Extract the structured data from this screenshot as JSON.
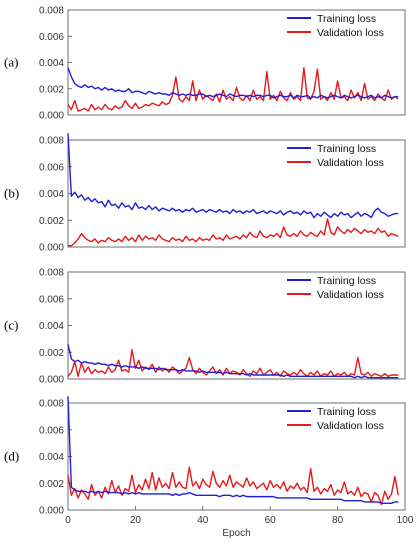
{
  "chart_data": [
    {
      "type": "line",
      "panel_label": "(a)",
      "xlabel": "",
      "ylabel": "",
      "xlim": [
        0,
        100
      ],
      "ylim": [
        0,
        0.008
      ],
      "y_ticks": [
        "0.000",
        "0.002",
        "0.004",
        "0.006",
        "0.008"
      ],
      "x_ticks": [],
      "legend_position": "top-right",
      "series": [
        {
          "name": "Training loss",
          "color": "#1f1fd6",
          "values": [
            0.0036,
            0.0029,
            0.0024,
            0.0022,
            0.0021,
            0.0023,
            0.0021,
            0.0022,
            0.002,
            0.0021,
            0.0019,
            0.0021,
            0.0019,
            0.002,
            0.0018,
            0.0019,
            0.0018,
            0.0018,
            0.002,
            0.0017,
            0.0018,
            0.0018,
            0.0017,
            0.0016,
            0.0018,
            0.0017,
            0.0016,
            0.0017,
            0.0016,
            0.0016,
            0.0015,
            0.0017,
            0.0016,
            0.0015,
            0.0016,
            0.0015,
            0.0016,
            0.0015,
            0.0015,
            0.0016,
            0.0016,
            0.0014,
            0.0015,
            0.0014,
            0.0015,
            0.0016,
            0.0015,
            0.0014,
            0.0016,
            0.0015,
            0.0014,
            0.0015,
            0.0015,
            0.0014,
            0.0015,
            0.0014,
            0.0015,
            0.0015,
            0.0014,
            0.0015,
            0.0015,
            0.0013,
            0.0014,
            0.0015,
            0.0014,
            0.0014,
            0.0015,
            0.0013,
            0.0015,
            0.0014,
            0.0014,
            0.0015,
            0.0013,
            0.0014,
            0.0013,
            0.0015,
            0.0014,
            0.0013,
            0.0014,
            0.0015,
            0.0014,
            0.0013,
            0.0015,
            0.0014,
            0.0013,
            0.0014,
            0.0015,
            0.0014,
            0.0013,
            0.0014,
            0.0015,
            0.0013,
            0.0014,
            0.0013,
            0.0015,
            0.0014,
            0.0013,
            0.0014,
            0.0014
          ]
        },
        {
          "name": "Validation loss",
          "color": "#e31a1c",
          "values": [
            0.0008,
            0.0004,
            0.0011,
            0.0003,
            0.0004,
            0.0005,
            0.0003,
            0.0008,
            0.0004,
            0.0006,
            0.0004,
            0.0008,
            0.0005,
            0.0004,
            0.0007,
            0.0005,
            0.0006,
            0.0011,
            0.0007,
            0.0005,
            0.0009,
            0.0005,
            0.0006,
            0.0008,
            0.0007,
            0.0009,
            0.0008,
            0.0007,
            0.001,
            0.0008,
            0.0009,
            0.0015,
            0.0029,
            0.0012,
            0.001,
            0.0014,
            0.0011,
            0.0026,
            0.0011,
            0.0019,
            0.0012,
            0.0015,
            0.0013,
            0.0011,
            0.0016,
            0.001,
            0.0019,
            0.0012,
            0.0014,
            0.0011,
            0.0021,
            0.0013,
            0.0011,
            0.0015,
            0.0011,
            0.0019,
            0.0012,
            0.0014,
            0.0011,
            0.0033,
            0.0012,
            0.0015,
            0.0011,
            0.0018,
            0.0013,
            0.0011,
            0.0017,
            0.0012,
            0.0014,
            0.0011,
            0.0036,
            0.0013,
            0.0012,
            0.0018,
            0.0035,
            0.0012,
            0.0014,
            0.0011,
            0.0017,
            0.0012,
            0.0026,
            0.0013,
            0.0014,
            0.0011,
            0.0019,
            0.0013,
            0.0017,
            0.0011,
            0.0024,
            0.0012,
            0.0014,
            0.0011,
            0.0016,
            0.0013,
            0.0011,
            0.0019,
            0.0012,
            0.0014,
            0.0012
          ]
        }
      ]
    },
    {
      "type": "line",
      "panel_label": "(b)",
      "xlabel": "",
      "ylabel": "",
      "xlim": [
        0,
        100
      ],
      "ylim": [
        0,
        0.008
      ],
      "y_ticks": [
        "0.000",
        "0.002",
        "0.004",
        "0.006",
        "0.008"
      ],
      "x_ticks": [],
      "legend_position": "top-right",
      "series": [
        {
          "name": "Training loss",
          "color": "#1f1fd6",
          "values": [
            0.0085,
            0.0038,
            0.0041,
            0.0037,
            0.0039,
            0.0035,
            0.0037,
            0.0034,
            0.0036,
            0.0033,
            0.0034,
            0.003,
            0.0035,
            0.0031,
            0.0032,
            0.0029,
            0.0033,
            0.003,
            0.0031,
            0.0028,
            0.0033,
            0.0029,
            0.003,
            0.0028,
            0.0031,
            0.0028,
            0.003,
            0.0027,
            0.0029,
            0.0028,
            0.0027,
            0.0029,
            0.0027,
            0.0028,
            0.0026,
            0.0028,
            0.0027,
            0.0029,
            0.0026,
            0.0027,
            0.0028,
            0.0026,
            0.0028,
            0.0027,
            0.0026,
            0.0028,
            0.0026,
            0.0027,
            0.0025,
            0.0028,
            0.0026,
            0.0027,
            0.0025,
            0.0027,
            0.0026,
            0.0028,
            0.0025,
            0.0026,
            0.0027,
            0.0025,
            0.0027,
            0.0026,
            0.0025,
            0.0027,
            0.0024,
            0.0026,
            0.0027,
            0.0025,
            0.0026,
            0.0024,
            0.0027,
            0.0025,
            0.0026,
            0.0022,
            0.0025,
            0.0023,
            0.0026,
            0.0024,
            0.0022,
            0.0025,
            0.0023,
            0.0026,
            0.0024,
            0.0025,
            0.0022,
            0.0024,
            0.0026,
            0.0023,
            0.0025,
            0.0024,
            0.0022,
            0.0027,
            0.0029,
            0.0026,
            0.0025,
            0.0023,
            0.0024,
            0.0025,
            0.0025
          ]
        },
        {
          "name": "Validation loss",
          "color": "#e31a1c",
          "values": [
            0.0001,
            0.0001,
            0.0003,
            0.0006,
            0.001,
            0.0007,
            0.0005,
            0.0004,
            0.0006,
            0.0003,
            0.0005,
            0.0004,
            0.0007,
            0.0005,
            0.0004,
            0.0006,
            0.0004,
            0.0008,
            0.0005,
            0.0007,
            0.0004,
            0.0009,
            0.0005,
            0.0008,
            0.0006,
            0.0007,
            0.0005,
            0.0009,
            0.0006,
            0.0005,
            0.0004,
            0.0007,
            0.0005,
            0.0006,
            0.0004,
            0.0008,
            0.0005,
            0.0006,
            0.0004,
            0.0007,
            0.0005,
            0.0006,
            0.0005,
            0.0009,
            0.0006,
            0.0007,
            0.0005,
            0.0009,
            0.0006,
            0.0007,
            0.0008,
            0.0006,
            0.0009,
            0.0007,
            0.0011,
            0.0008,
            0.0007,
            0.0012,
            0.0008,
            0.0007,
            0.0009,
            0.0008,
            0.001,
            0.0007,
            0.0015,
            0.0009,
            0.0008,
            0.001,
            0.0008,
            0.0012,
            0.0009,
            0.0008,
            0.0011,
            0.0009,
            0.0008,
            0.0012,
            0.0009,
            0.0021,
            0.0011,
            0.0009,
            0.0015,
            0.0012,
            0.001,
            0.0013,
            0.0011,
            0.0014,
            0.0012,
            0.001,
            0.0013,
            0.0011,
            0.0012,
            0.001,
            0.0014,
            0.0011,
            0.0012,
            0.0008,
            0.001,
            0.0009,
            0.0008
          ]
        }
      ]
    },
    {
      "type": "line",
      "panel_label": "(c)",
      "xlabel": "",
      "ylabel": "",
      "xlim": [
        0,
        100
      ],
      "ylim": [
        0,
        0.008
      ],
      "y_ticks": [
        "0.000",
        "0.002",
        "0.004",
        "0.006",
        "0.008"
      ],
      "x_ticks": [],
      "legend_position": "top-right",
      "series": [
        {
          "name": "Training loss",
          "color": "#1f1fd6",
          "values": [
            0.0026,
            0.0015,
            0.0013,
            0.0014,
            0.0012,
            0.0013,
            0.0012,
            0.0012,
            0.0011,
            0.0012,
            0.0011,
            0.0011,
            0.001,
            0.0011,
            0.001,
            0.001,
            0.0009,
            0.001,
            0.0009,
            0.0009,
            0.0009,
            0.0008,
            0.0009,
            0.0008,
            0.0008,
            0.0008,
            0.0008,
            0.0007,
            0.0008,
            0.0007,
            0.0007,
            0.0007,
            0.0007,
            0.0006,
            0.0007,
            0.0006,
            0.0006,
            0.0006,
            0.0006,
            0.0005,
            0.0006,
            0.0005,
            0.0005,
            0.0005,
            0.0005,
            0.0005,
            0.0004,
            0.0005,
            0.0004,
            0.0004,
            0.0004,
            0.0004,
            0.0004,
            0.0003,
            0.0004,
            0.0003,
            0.0003,
            0.0003,
            0.0003,
            0.0003,
            0.0003,
            0.0003,
            0.0003,
            0.0003,
            0.0002,
            0.0003,
            0.0002,
            0.0002,
            0.0002,
            0.0002,
            0.0002,
            0.0002,
            0.0002,
            0.0002,
            0.0002,
            0.0002,
            0.0002,
            0.0002,
            0.0002,
            0.0002,
            0.0002,
            0.0002,
            0.0002,
            0.0002,
            0.0002,
            0.0001,
            0.0002,
            0.0001,
            0.0002,
            0.0001,
            0.0001,
            0.0001,
            0.0001,
            0.0001,
            0.0001,
            0.0001,
            0.0001,
            0.0001,
            0.0001
          ]
        },
        {
          "name": "Validation loss",
          "color": "#e31a1c",
          "values": [
            0.0002,
            0.0005,
            0.0013,
            0.0002,
            0.0012,
            0.0005,
            0.0009,
            0.0004,
            0.0007,
            0.0005,
            0.0006,
            0.0004,
            0.0009,
            0.0005,
            0.0007,
            0.0014,
            0.0006,
            0.0007,
            0.0005,
            0.0022,
            0.0008,
            0.0014,
            0.0006,
            0.0009,
            0.0007,
            0.0011,
            0.0005,
            0.0009,
            0.0006,
            0.0008,
            0.0005,
            0.0009,
            0.0007,
            0.0004,
            0.0006,
            0.0008,
            0.0016,
            0.0007,
            0.0004,
            0.0008,
            0.0005,
            0.0003,
            0.0006,
            0.0009,
            0.0004,
            0.0007,
            0.0003,
            0.0008,
            0.0004,
            0.0006,
            0.0005,
            0.0003,
            0.0007,
            0.0004,
            0.0002,
            0.0006,
            0.0004,
            0.0008,
            0.0003,
            0.0005,
            0.0007,
            0.0003,
            0.0005,
            0.0002,
            0.0006,
            0.0004,
            0.0003,
            0.0005,
            0.0003,
            0.0007,
            0.0004,
            0.0002,
            0.0005,
            0.0003,
            0.0006,
            0.0002,
            0.0004,
            0.0003,
            0.0006,
            0.0002,
            0.0004,
            0.0003,
            0.0005,
            0.0002,
            0.0004,
            0.0003,
            0.0016,
            0.0004,
            0.0003,
            0.0005,
            0.0002,
            0.0004,
            0.0003,
            0.0002,
            0.0004,
            0.0002,
            0.0003,
            0.0003,
            0.0003
          ]
        }
      ]
    },
    {
      "type": "line",
      "panel_label": "(d)",
      "xlabel": "Epoch",
      "ylabel": "",
      "xlim": [
        0,
        100
      ],
      "ylim": [
        0,
        0.008
      ],
      "y_ticks": [
        "0.000",
        "0.002",
        "0.004",
        "0.006",
        "0.008"
      ],
      "x_ticks": [
        "0",
        "20",
        "40",
        "60",
        "80",
        "100"
      ],
      "legend_position": "top-right",
      "series": [
        {
          "name": "Training loss",
          "color": "#1f1fd6",
          "values": [
            0.0085,
            0.0017,
            0.0015,
            0.0014,
            0.0014,
            0.0014,
            0.0013,
            0.0014,
            0.0013,
            0.0014,
            0.0013,
            0.0014,
            0.0013,
            0.0013,
            0.0013,
            0.0013,
            0.0012,
            0.0013,
            0.0012,
            0.0013,
            0.0012,
            0.0013,
            0.0012,
            0.0012,
            0.0012,
            0.0012,
            0.0012,
            0.0012,
            0.0012,
            0.0012,
            0.0012,
            0.0011,
            0.0012,
            0.0011,
            0.0012,
            0.0012,
            0.0013,
            0.0012,
            0.0011,
            0.0011,
            0.0011,
            0.0011,
            0.0011,
            0.0011,
            0.0011,
            0.001,
            0.0011,
            0.0011,
            0.0011,
            0.001,
            0.0011,
            0.001,
            0.0011,
            0.001,
            0.001,
            0.001,
            0.001,
            0.001,
            0.001,
            0.001,
            0.001,
            0.001,
            0.0009,
            0.0009,
            0.0009,
            0.0009,
            0.0009,
            0.0009,
            0.0009,
            0.0009,
            0.0009,
            0.0009,
            0.0008,
            0.0008,
            0.0008,
            0.0008,
            0.0008,
            0.0008,
            0.0008,
            0.0008,
            0.0008,
            0.0008,
            0.0007,
            0.0007,
            0.0007,
            0.0007,
            0.0007,
            0.0007,
            0.0006,
            0.0006,
            0.0006,
            0.0006,
            0.0006,
            0.0005,
            0.0005,
            0.0005,
            0.0005,
            0.0006,
            0.0006
          ]
        },
        {
          "name": "Validation loss",
          "color": "#e31a1c",
          "values": [
            0.0026,
            0.0011,
            0.0016,
            0.0009,
            0.0015,
            0.0012,
            0.0008,
            0.0019,
            0.0011,
            0.0014,
            0.0009,
            0.0017,
            0.0012,
            0.0022,
            0.0013,
            0.0018,
            0.0011,
            0.0016,
            0.0014,
            0.0026,
            0.0013,
            0.0019,
            0.0015,
            0.0023,
            0.0016,
            0.0028,
            0.0015,
            0.0024,
            0.0017,
            0.002,
            0.0016,
            0.0028,
            0.0017,
            0.0021,
            0.0017,
            0.0016,
            0.0032,
            0.0018,
            0.0021,
            0.0016,
            0.0023,
            0.0019,
            0.0017,
            0.0029,
            0.002,
            0.0017,
            0.0022,
            0.0018,
            0.0026,
            0.0017,
            0.0021,
            0.0019,
            0.0017,
            0.0024,
            0.0018,
            0.0021,
            0.0016,
            0.0018,
            0.002,
            0.0015,
            0.0022,
            0.0017,
            0.0019,
            0.0016,
            0.0021,
            0.0014,
            0.0018,
            0.0016,
            0.002,
            0.0015,
            0.0017,
            0.0013,
            0.0031,
            0.0014,
            0.0017,
            0.0012,
            0.0016,
            0.0014,
            0.0019,
            0.0011,
            0.0015,
            0.0013,
            0.0021,
            0.0012,
            0.0014,
            0.0011,
            0.0017,
            0.001,
            0.0013,
            0.0012,
            0.0006,
            0.0013,
            0.0011,
            0.0004,
            0.0014,
            0.0008,
            0.0012,
            0.0025,
            0.0011
          ]
        }
      ]
    }
  ]
}
